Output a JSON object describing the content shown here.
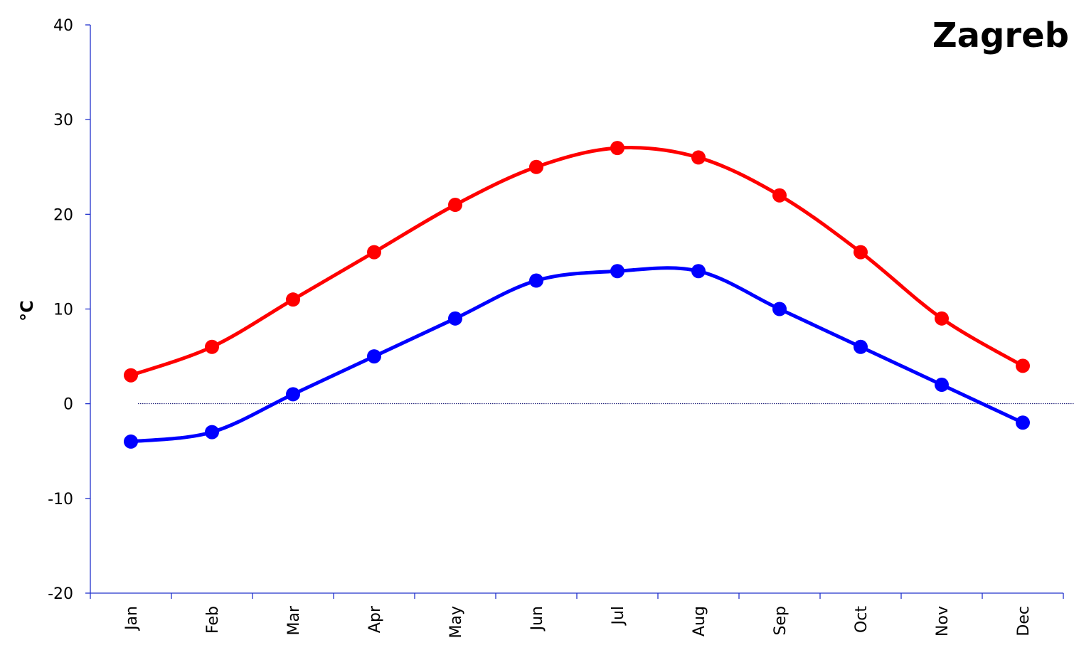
{
  "chart_data": {
    "type": "line",
    "title": "Zagreb",
    "ylabel": "°C",
    "xlabel": "",
    "ylim": [
      -20,
      40
    ],
    "yticks": [
      "-20",
      "-10",
      "0",
      "10",
      "20",
      "30",
      "40"
    ],
    "categories": [
      "Jan",
      "Feb",
      "Mar",
      "Apr",
      "May",
      "Jun",
      "Jul",
      "Aug",
      "Sep",
      "Oct",
      "Nov",
      "Dec"
    ],
    "series": [
      {
        "key": "high",
        "color": "#ff0000",
        "values": [
          3,
          6,
          11,
          16,
          21,
          25,
          27,
          26,
          22,
          16,
          9,
          4
        ]
      },
      {
        "key": "low",
        "color": "#0000ff",
        "values": [
          -4,
          -3,
          1,
          5,
          9,
          13,
          14,
          14,
          10,
          6,
          2,
          -2
        ]
      }
    ],
    "reference_line": {
      "y": 0,
      "style": "dotted"
    },
    "grid": false,
    "legend": "none",
    "smoothed": true
  }
}
